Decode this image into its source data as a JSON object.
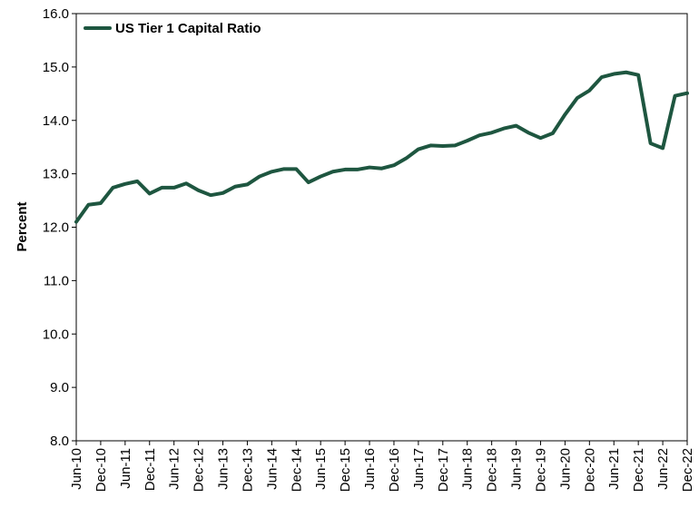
{
  "chart_data": {
    "type": "line",
    "title": "",
    "xlabel": "",
    "ylabel": "Percent",
    "ylim": [
      8.0,
      16.0
    ],
    "yticks": [
      "8.0",
      "9.0",
      "10.0",
      "11.0",
      "12.0",
      "13.0",
      "14.0",
      "15.0",
      "16.0"
    ],
    "x": [
      "Jun-10",
      "Sep-10",
      "Dec-10",
      "Mar-11",
      "Jun-11",
      "Sep-11",
      "Dec-11",
      "Mar-12",
      "Jun-12",
      "Sep-12",
      "Dec-12",
      "Mar-13",
      "Jun-13",
      "Sep-13",
      "Dec-13",
      "Mar-14",
      "Jun-14",
      "Sep-14",
      "Dec-14",
      "Mar-15",
      "Jun-15",
      "Sep-15",
      "Dec-15",
      "Mar-16",
      "Jun-16",
      "Sep-16",
      "Dec-16",
      "Mar-17",
      "Jun-17",
      "Sep-17",
      "Dec-17",
      "Mar-18",
      "Jun-18",
      "Sep-18",
      "Dec-18",
      "Mar-19",
      "Jun-19",
      "Sep-19",
      "Dec-19",
      "Mar-20",
      "Jun-20",
      "Sep-20",
      "Dec-20",
      "Mar-21",
      "Jun-21",
      "Sep-21",
      "Dec-21",
      "Mar-22",
      "Jun-22",
      "Sep-22",
      "Dec-22"
    ],
    "x_tick_labels": [
      "Jun-10",
      "Dec-10",
      "Jun-11",
      "Dec-11",
      "Jun-12",
      "Dec-12",
      "Jun-13",
      "Dec-13",
      "Jun-14",
      "Dec-14",
      "Jun-15",
      "Dec-15",
      "Jun-16",
      "Dec-16",
      "Jun-17",
      "Dec-17",
      "Jun-18",
      "Dec-18",
      "Jun-19",
      "Dec-19",
      "Jun-20",
      "Dec-20",
      "Jun-21",
      "Dec-21",
      "Jun-22",
      "Dec-22"
    ],
    "series": [
      {
        "name": "US Tier 1 Capital Ratio",
        "color": "#1e5640",
        "values": [
          12.1,
          12.42,
          12.45,
          12.74,
          12.81,
          12.86,
          12.63,
          12.74,
          12.74,
          12.82,
          12.69,
          12.6,
          12.64,
          12.76,
          12.8,
          12.95,
          13.04,
          13.09,
          13.09,
          12.84,
          12.95,
          13.04,
          13.08,
          13.08,
          13.12,
          13.1,
          13.16,
          13.29,
          13.46,
          13.53,
          13.52,
          13.53,
          13.62,
          13.72,
          13.77,
          13.85,
          13.9,
          13.77,
          13.67,
          13.76,
          14.11,
          14.42,
          14.56,
          14.81,
          14.87,
          14.9,
          14.85,
          13.57,
          13.48,
          14.46,
          14.51
        ]
      }
    ],
    "legend_position": "top-left",
    "grid": false
  }
}
